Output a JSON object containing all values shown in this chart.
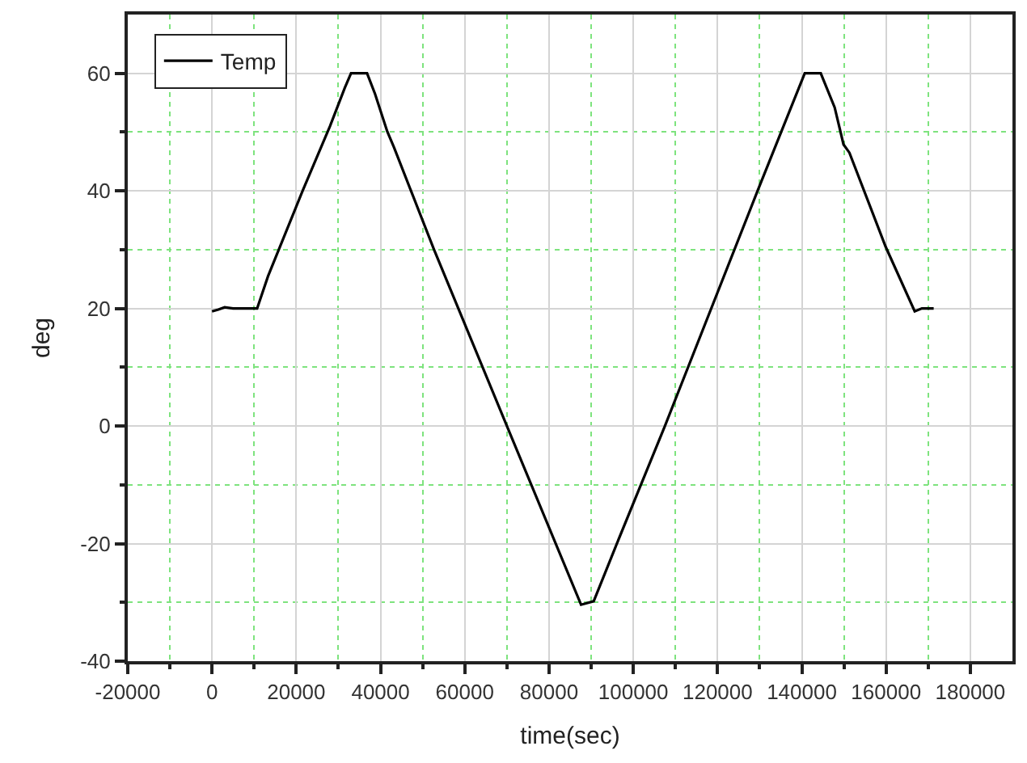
{
  "chart_data": {
    "type": "line",
    "xlabel": "time(sec)",
    "ylabel": "deg",
    "x": [
      0,
      1500,
      3000,
      5000,
      8000,
      10700,
      13300,
      21500,
      28000,
      31500,
      33000,
      36800,
      38700,
      41600,
      43200,
      52700,
      70000,
      87600,
      90600,
      96100,
      107500,
      129500,
      137000,
      140700,
      144500,
      147800,
      149900,
      151300,
      159900,
      166800,
      168500,
      171300
    ],
    "series": [
      {
        "name": "Temp",
        "color": "#000000",
        "values": [
          19.5,
          19.8,
          20.2,
          20,
          20,
          20,
          25.5,
          40,
          51,
          57.5,
          60,
          60,
          56.5,
          50.1,
          47.4,
          30,
          0,
          -30.4,
          -29.8,
          -20,
          0,
          40,
          53.4,
          60,
          60,
          54.2,
          47.9,
          46.5,
          30.5,
          19.5,
          20,
          20
        ]
      }
    ],
    "xlim": [
      -20000,
      190000
    ],
    "xticks": [
      -20000,
      {
        "value": -10000,
        "label": null
      },
      0,
      {
        "value": 10000,
        "label": null
      },
      20000,
      {
        "value": 30000,
        "label": null
      },
      40000,
      {
        "value": 50000,
        "label": null
      },
      60000,
      {
        "value": 70000,
        "label": null
      },
      80000,
      {
        "value": 90000,
        "label": null
      },
      100000,
      {
        "value": 110000,
        "label": null
      },
      120000,
      {
        "value": 130000,
        "label": null
      },
      140000,
      {
        "value": 150000,
        "label": null
      },
      160000,
      {
        "value": 170000,
        "label": null
      },
      180000
    ],
    "ylim": [
      -40,
      70
    ],
    "yticks": [
      -40,
      {
        "value": -30,
        "label": null
      },
      -20,
      {
        "value": -10,
        "label": null
      },
      0,
      {
        "value": 10,
        "label": null
      },
      20,
      {
        "value": 30,
        "label": null
      },
      40,
      {
        "value": 50,
        "label": null
      },
      60
    ],
    "grid": true,
    "legend": "top left",
    "marker": "none",
    "line_style": "solid"
  }
}
